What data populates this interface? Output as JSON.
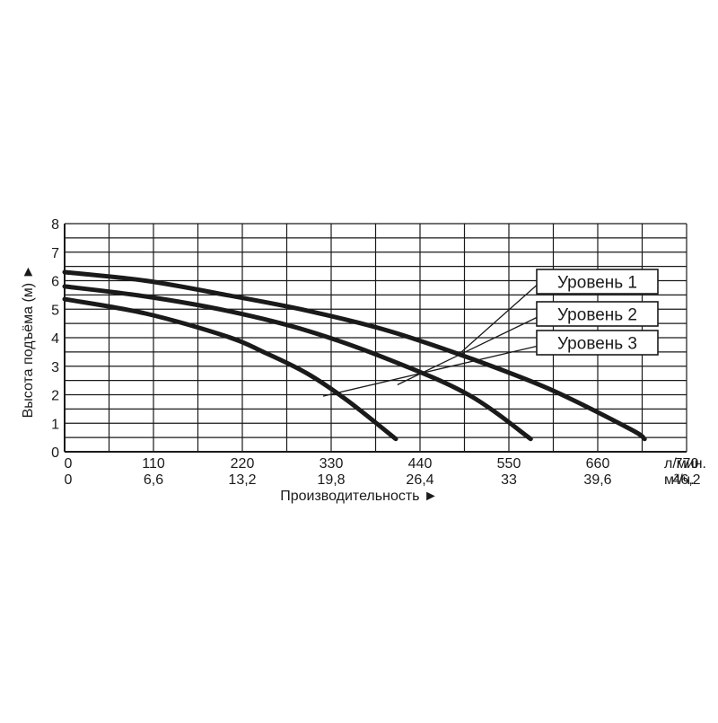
{
  "chart_data": {
    "type": "line",
    "title": "",
    "xlabel": "Производительность ►",
    "ylabel": "Высота подъёма (м) ►",
    "x_unit_primary": "л/мин.",
    "x_unit_secondary": "м³/ч.",
    "xlim": [
      0,
      770
    ],
    "ylim": [
      0,
      8
    ],
    "y_ticks": [
      "0",
      "1",
      "2",
      "3",
      "4",
      "5",
      "6",
      "7",
      "8"
    ],
    "x_ticks_primary": [
      "0",
      "110",
      "220",
      "330",
      "440",
      "550",
      "660",
      "770"
    ],
    "x_ticks_secondary": [
      "0",
      "6,6",
      "13,2",
      "19,8",
      "26,4",
      "33",
      "39,6",
      "46,2"
    ],
    "grid": true,
    "legend_placement": "right, callout boxes",
    "line_color": "#1a1a1a",
    "series": [
      {
        "name": "Уровень 1",
        "x": [
          0,
          100,
          200,
          300,
          400,
          500,
          600,
          700,
          718
        ],
        "y": [
          6.3,
          6.0,
          5.5,
          4.95,
          4.25,
          3.3,
          2.2,
          0.8,
          0.45
        ]
      },
      {
        "name": "Уровень 2",
        "x": [
          0,
          100,
          200,
          300,
          400,
          500,
          577
        ],
        "y": [
          5.8,
          5.45,
          4.95,
          4.25,
          3.25,
          2.0,
          0.45
        ]
      },
      {
        "name": "Уровень 3",
        "x": [
          0,
          100,
          200,
          250,
          300,
          350,
          410
        ],
        "y": [
          5.35,
          4.85,
          4.05,
          3.45,
          2.75,
          1.8,
          0.45
        ]
      }
    ]
  }
}
